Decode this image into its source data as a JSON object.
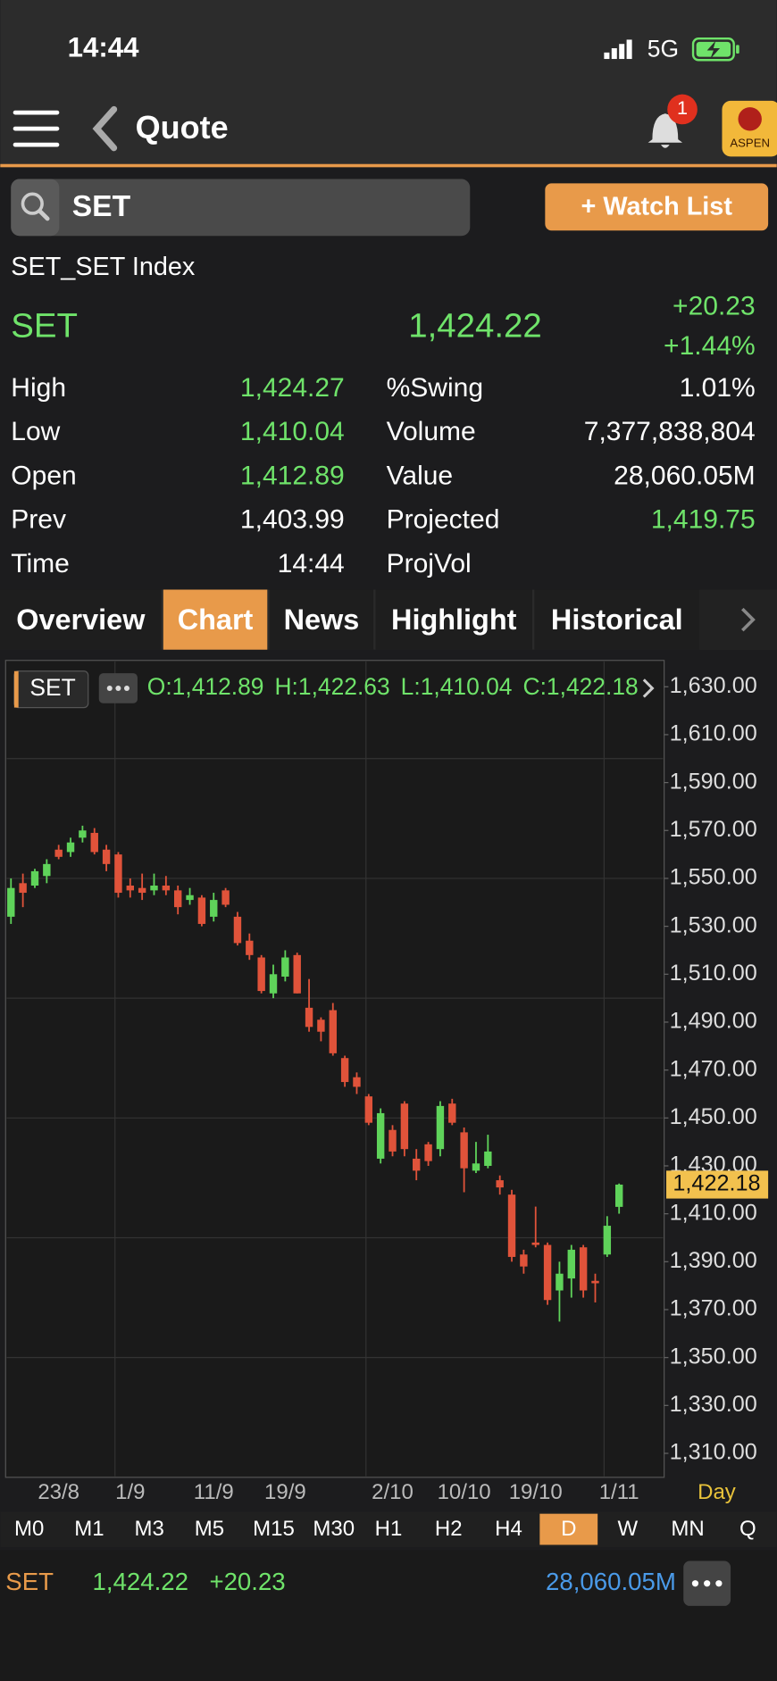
{
  "status": {
    "time": "14:44",
    "network": "5G"
  },
  "nav": {
    "title": "Quote",
    "badge": "1",
    "logo": "ASPEN"
  },
  "search": {
    "symbol": "SET",
    "button": "+ Watch List"
  },
  "quote": {
    "name": "SET_SET Index",
    "symbol": "SET",
    "last": "1,424.22",
    "change": "+20.23",
    "percent": "+1.44%"
  },
  "stats": [
    {
      "label": "High",
      "value": "1,424.27",
      "up": true
    },
    {
      "label": "%Swing",
      "value": "1.01%",
      "up": false
    },
    {
      "label": "Low",
      "value": "1,410.04",
      "up": true
    },
    {
      "label": "Volume",
      "value": "7,377,838,804",
      "up": false
    },
    {
      "label": "Open",
      "value": "1,412.89",
      "up": true
    },
    {
      "label": "Value",
      "value": "28,060.05M",
      "up": false
    },
    {
      "label": "Prev",
      "value": "1,403.99",
      "up": false
    },
    {
      "label": "Projected",
      "value": "1,419.75",
      "up": true
    },
    {
      "label": "Time",
      "value": "14:44",
      "up": false
    },
    {
      "label": "ProjVol"
    }
  ],
  "tabs": {
    "items": [
      "Overview",
      "Chart",
      "News",
      "Highlight",
      "Historical"
    ],
    "active": 1
  },
  "chart_data": {
    "type": "candlestick",
    "symbol": "SET",
    "ohlc_text": [
      "O:1,412.89",
      "H:1,422.63",
      "L:1,410.04",
      "C:1,422.18"
    ],
    "up_color": "#5fd35a",
    "down_color": "#e0533a",
    "categories": [
      null,
      null,
      null,
      null,
      "23/8",
      null,
      null,
      null,
      null,
      null,
      "1/9",
      null,
      null,
      null,
      null,
      null,
      null,
      "11/9",
      null,
      null,
      null,
      null,
      null,
      "19/9",
      null,
      null,
      null,
      null,
      null,
      null,
      null,
      null,
      "2/10",
      null,
      null,
      null,
      null,
      null,
      "10/10",
      null,
      null,
      null,
      null,
      null,
      "19/10",
      null,
      null,
      null,
      null,
      null,
      null,
      "1/11"
    ],
    "open": [
      1534,
      1548,
      1547,
      1551,
      1562,
      1561,
      1567,
      1569,
      1562,
      1560,
      1547,
      1546,
      1545,
      1547,
      1545,
      1541,
      1542,
      1534,
      1545,
      1534,
      1524,
      1517,
      1502,
      1509,
      1518,
      1496,
      1491,
      1495,
      1475,
      1467,
      1459,
      1433,
      1445,
      1456,
      1433,
      1439,
      1437,
      1456,
      1444,
      1428,
      1430,
      1424,
      1418,
      1393,
      1398,
      1397,
      1378,
      1383,
      1396,
      1382,
      1393,
      1412.89
    ],
    "high": [
      1550,
      1552,
      1554,
      1558,
      1564,
      1567,
      1572,
      1571,
      1564,
      1561,
      1550,
      1552,
      1552,
      1551,
      1547,
      1546,
      1543,
      1544,
      1546,
      1536,
      1527,
      1518,
      1514,
      1520,
      1519,
      1508,
      1492,
      1498,
      1476,
      1469,
      1460,
      1454,
      1447,
      1457,
      1437,
      1440,
      1457,
      1458,
      1446,
      1440,
      1443,
      1426,
      1420,
      1395,
      1413,
      1398,
      1390,
      1397,
      1397,
      1385,
      1409,
      1422.63
    ],
    "low": [
      1531,
      1538,
      1546,
      1548,
      1558,
      1559,
      1565,
      1560,
      1553,
      1542,
      1542,
      1541,
      1543,
      1543,
      1535,
      1539,
      1530,
      1532,
      1538,
      1522,
      1516,
      1502,
      1500,
      1507,
      1502,
      1486,
      1482,
      1476,
      1463,
      1460,
      1447,
      1431,
      1434,
      1434,
      1424,
      1430,
      1434,
      1447,
      1419,
      1427,
      1429,
      1418,
      1390,
      1385,
      1396,
      1372,
      1365,
      1375,
      1375,
      1373,
      1392,
      1410.04
    ],
    "close": [
      1546,
      1544,
      1553,
      1556,
      1559,
      1565,
      1570,
      1561,
      1556,
      1544,
      1545,
      1544,
      1547,
      1545,
      1538,
      1543,
      1531,
      1541,
      1539,
      1523,
      1518,
      1503,
      1510,
      1517,
      1502,
      1488,
      1486,
      1477,
      1465,
      1463,
      1448,
      1452,
      1436,
      1437,
      1428,
      1432,
      1455,
      1448,
      1429,
      1431,
      1436,
      1421,
      1392,
      1388,
      1397,
      1374,
      1385,
      1395,
      1378,
      1381,
      1405,
      1422.18
    ],
    "ylim": [
      1300,
      1641
    ],
    "yticks": [
      {
        "value": 1310,
        "label": "1,310.00"
      },
      {
        "value": 1330,
        "label": "1,330.00"
      },
      {
        "value": 1350,
        "label": "1,350.00"
      },
      {
        "value": 1370,
        "label": "1,370.00"
      },
      {
        "value": 1390,
        "label": "1,390.00"
      },
      {
        "value": 1410,
        "label": "1,410.00"
      },
      {
        "value": 1430,
        "label": "1,430.00"
      },
      {
        "value": 1450,
        "label": "1,450.00"
      },
      {
        "value": 1470,
        "label": "1,470.00"
      },
      {
        "value": 1490,
        "label": "1,490.00"
      },
      {
        "value": 1510,
        "label": "1,510.00"
      },
      {
        "value": 1530,
        "label": "1,530.00"
      },
      {
        "value": 1550,
        "label": "1,550.00"
      },
      {
        "value": 1570,
        "label": "1,570.00"
      },
      {
        "value": 1590,
        "label": "1,590.00"
      },
      {
        "value": 1610,
        "label": "1,610.00"
      },
      {
        "value": 1630,
        "label": "1,630.00"
      }
    ],
    "grid_values": [
      1350,
      1400,
      1450,
      1500,
      1550,
      1600
    ],
    "price_tag": {
      "value": 1422.18,
      "label": "1,422.18"
    },
    "interval_label": "Day"
  },
  "periods": {
    "items": [
      "M0",
      "M1",
      "M3",
      "M5",
      "M15",
      "M30",
      "H1",
      "H2",
      "H4",
      "D",
      "W",
      "MN",
      "Q"
    ],
    "active": 9
  },
  "footer": {
    "symbol": "SET",
    "price": "1,424.22",
    "change": "+20.23",
    "value": "28,060.05M"
  }
}
